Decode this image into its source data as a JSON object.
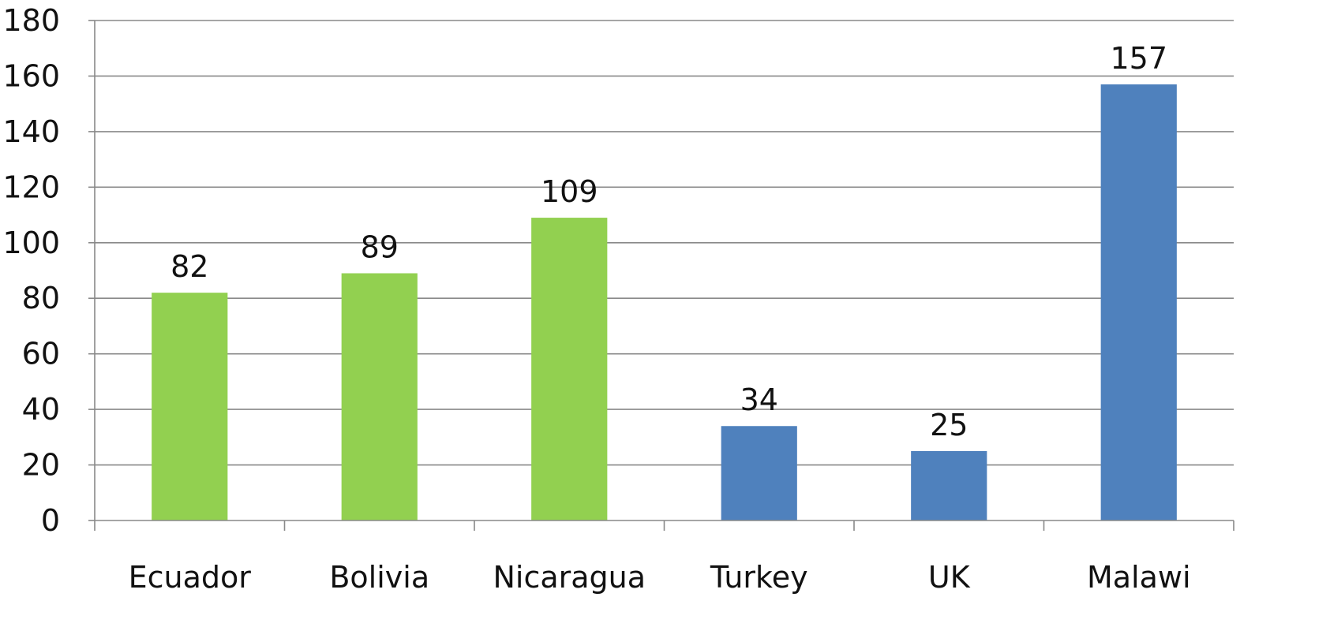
{
  "chart_data": {
    "type": "bar",
    "title": "",
    "xlabel": "",
    "ylabel": "",
    "ylim": [
      0,
      180
    ],
    "ytick_step": 20,
    "grid": true,
    "legend": "none",
    "categories": [
      "Ecuador",
      "Bolivia",
      "Nicaragua",
      "Turkey",
      "UK",
      "Malawi"
    ],
    "values": [
      82,
      89,
      109,
      34,
      25,
      157
    ],
    "bar_colors": [
      "#92d050",
      "#92d050",
      "#92d050",
      "#4f81bd",
      "#4f81bd",
      "#4f81bd"
    ],
    "data_labels": true
  }
}
